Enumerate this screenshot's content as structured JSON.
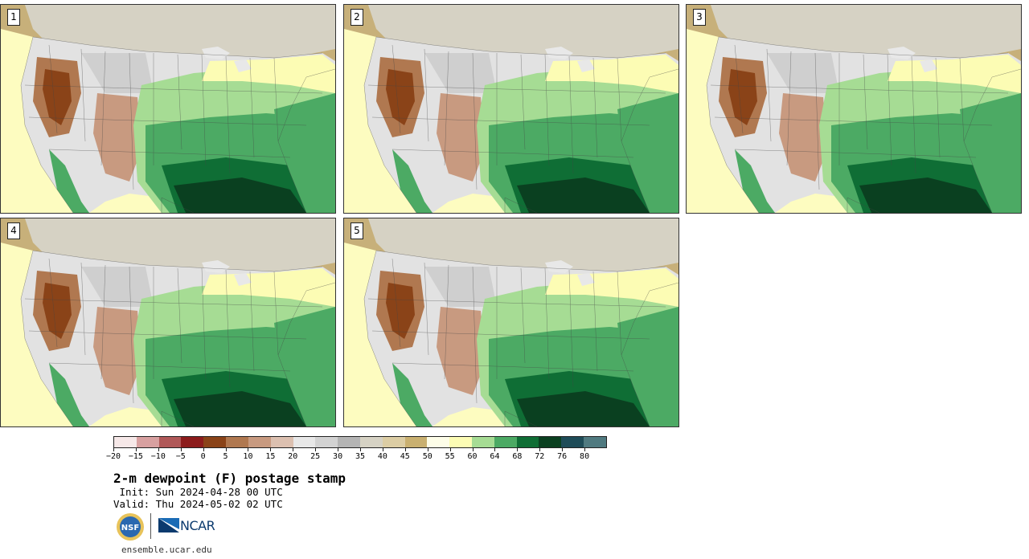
{
  "panels": [
    {
      "label": "1"
    },
    {
      "label": "2"
    },
    {
      "label": "3"
    },
    {
      "label": "4"
    },
    {
      "label": "5"
    }
  ],
  "colorbar": {
    "colors": [
      "#f6e8e8",
      "#d8a0a0",
      "#b05858",
      "#8c1c1c",
      "#8a4318",
      "#b07850",
      "#c89a80",
      "#dcc0b0",
      "#e8e8e8",
      "#d2d2d2",
      "#b4b4b4",
      "#d6d2c4",
      "#dccda4",
      "#c9b070",
      "#fdfde8",
      "#fcfcb4",
      "#a6dc94",
      "#4caa64",
      "#0f6e35",
      "#0a4020",
      "#1e4c58",
      "#507a80"
    ],
    "tick_labels": [
      "−20",
      "−15",
      "−10",
      "−5",
      "0",
      "5",
      "10",
      "15",
      "20",
      "25",
      "30",
      "35",
      "40",
      "45",
      "50",
      "55",
      "60",
      "64",
      "68",
      "72",
      "76",
      "80"
    ]
  },
  "title": "2-m dewpoint (F) postage stamp",
  "init": " Init: Sun 2024-04-28 00 UTC",
  "valid": "Valid: Thu 2024-05-02 02 UTC",
  "logos": {
    "nsf": "NSF",
    "ncar": "NCAR"
  },
  "url": "ensemble.ucar.edu"
}
